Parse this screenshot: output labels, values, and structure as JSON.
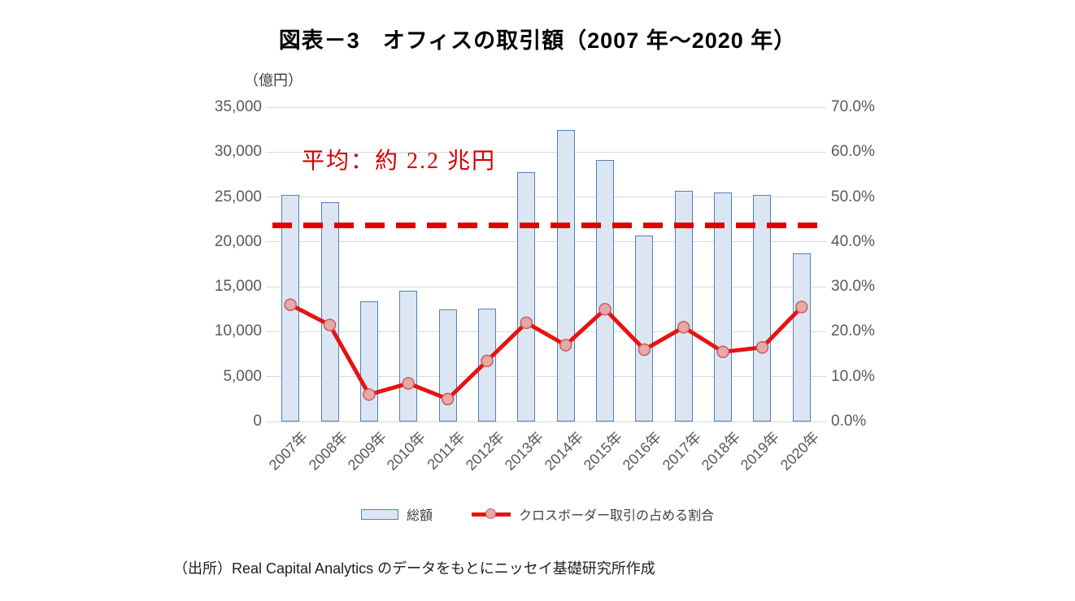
{
  "title": "図表－3　オフィスの取引額（2007 年～2020 年）",
  "source": "（出所）Real Capital Analytics のデータをもとにニッセイ基礎研究所作成",
  "colors": {
    "bar_fill": "#dce6f2",
    "bar_border": "#4f81bd",
    "line": "#e81212",
    "marker_fill": "#e9a8a8",
    "marker_border": "#c45f5f",
    "average_line": "#e00000",
    "annotation_text": "#d40000",
    "grid": "#d9d9d9",
    "axis_text": "#595959"
  },
  "chart_data": {
    "type": "bar",
    "subtype": "bar-line-combo",
    "categories": [
      "2007年",
      "2008年",
      "2009年",
      "2010年",
      "2011年",
      "2012年",
      "2013年",
      "2014年",
      "2015年",
      "2016年",
      "2017年",
      "2018年",
      "2019年",
      "2020年"
    ],
    "series": [
      {
        "name": "総額",
        "type": "bar",
        "axis": "left",
        "unit": "億円",
        "values": [
          25200,
          24400,
          13400,
          14600,
          12500,
          12600,
          27800,
          32500,
          29100,
          20700,
          25700,
          25500,
          25200,
          18700
        ]
      },
      {
        "name": "クロスボーダー取引の占める割合",
        "type": "line",
        "axis": "right",
        "unit": "%",
        "values": [
          26.0,
          21.5,
          6.0,
          8.5,
          5.0,
          13.5,
          22.0,
          17.0,
          25.0,
          16.0,
          21.0,
          15.5,
          16.5,
          25.5
        ]
      }
    ],
    "left_axis": {
      "label": "（億円）",
      "min": 0,
      "max": 35000,
      "step": 5000,
      "ticks": [
        "0",
        "5,000",
        "10,000",
        "15,000",
        "20,000",
        "25,000",
        "30,000",
        "35,000"
      ]
    },
    "right_axis": {
      "min": 0,
      "max": 70,
      "step": 10,
      "ticks": [
        "0.0%",
        "10.0%",
        "20.0%",
        "30.0%",
        "40.0%",
        "50.0%",
        "60.0%",
        "70.0%"
      ]
    },
    "average_line": {
      "value": 21800,
      "label": "平均：約 2.2 兆円"
    },
    "grid": true,
    "legend_position": "bottom"
  }
}
